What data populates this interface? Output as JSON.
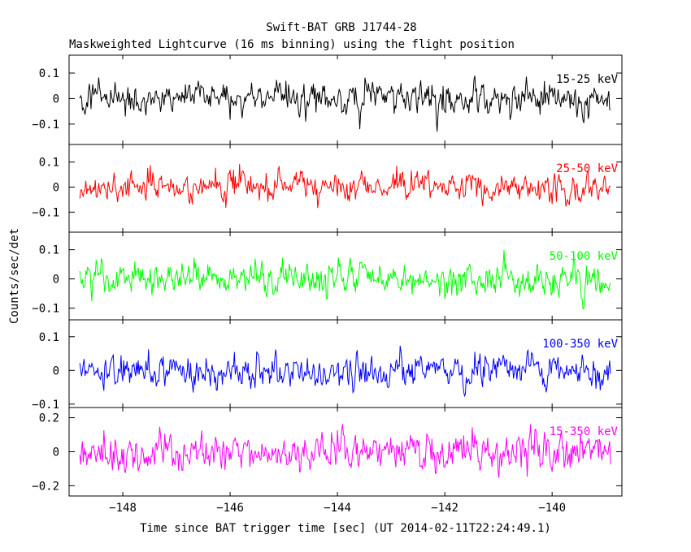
{
  "chart_data": {
    "type": "line",
    "title": "Swift-BAT GRB J1744-28",
    "subtitle": "Maskweighted Lightcurve (16 ms binning) using the flight position",
    "xlabel": "Time since BAT trigger time [sec] (UT 2014-02-11T22:24:49.1)",
    "ylabel": "Counts/sec/det",
    "xlim": [
      -149.0,
      -138.7
    ],
    "bin_width_sec": 0.016,
    "data_range_sec": [
      -148.8,
      -138.9
    ],
    "xticks": [
      -148,
      -146,
      -144,
      -142,
      -140
    ],
    "xtick_labels": [
      "−148",
      "−146",
      "−144",
      "−142",
      "−140"
    ],
    "panels": [
      {
        "name": "15-25 keV",
        "color": "#000000",
        "ylim": [
          -0.18,
          0.17
        ],
        "yticks": [
          -0.1,
          0,
          0.1
        ],
        "ytick_labels": [
          "−0.1",
          "0",
          "0.1"
        ],
        "amplitude": 0.05
      },
      {
        "name": "25-50 keV",
        "color": "#ff0000",
        "ylim": [
          -0.18,
          0.17
        ],
        "yticks": [
          -0.1,
          0,
          0.1
        ],
        "ytick_labels": [
          "−0.1",
          "0",
          "0.1"
        ],
        "amplitude": 0.05
      },
      {
        "name": "50-100 keV",
        "color": "#00ff00",
        "ylim": [
          -0.14,
          0.16
        ],
        "yticks": [
          -0.1,
          0,
          0.1
        ],
        "ytick_labels": [
          "−0.1",
          "0",
          "0.1"
        ],
        "amplitude": 0.045
      },
      {
        "name": "100-350 keV",
        "color": "#0000ff",
        "ylim": [
          -0.11,
          0.15
        ],
        "yticks": [
          -0.1,
          0,
          0.1
        ],
        "ytick_labels": [
          "−0.1",
          "0",
          "0.1"
        ],
        "amplitude": 0.04
      },
      {
        "name": "15-350 keV",
        "color": "#ff00ff",
        "ylim": [
          -0.26,
          0.26
        ],
        "yticks": [
          -0.2,
          0,
          0.2
        ],
        "ytick_labels": [
          "−0.2",
          "0",
          "0.2"
        ],
        "amplitude": 0.09
      }
    ]
  }
}
